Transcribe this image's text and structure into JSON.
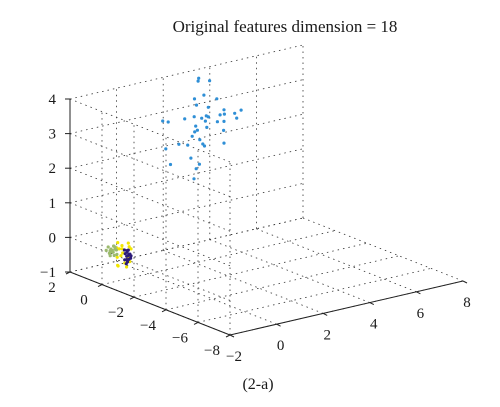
{
  "chart_data": {
    "type": "scatter",
    "projection": "3d",
    "title": "Original features dimension = 18",
    "caption": "(2-a)",
    "xlabel": "",
    "ylabel": "",
    "zlabel": "",
    "grid": true,
    "xlim": [
      -2,
      8
    ],
    "ylim": [
      -8,
      2
    ],
    "zlim": [
      -1,
      4
    ],
    "x_ticks": [
      "−2",
      "0",
      "2",
      "4",
      "6",
      "8"
    ],
    "y_ticks": [
      "2",
      "0",
      "−2",
      "−4",
      "−6",
      "−8"
    ],
    "z_ticks": [
      "−1",
      "0",
      "1",
      "2",
      "3",
      "4"
    ],
    "colors": {
      "yellow": "#f2e600",
      "green": "#9cba6e",
      "navy": "#2c1b78",
      "blue": "#2f8fd6"
    },
    "series": [
      {
        "color": "yellow",
        "points": [
          [
            -0.9,
            0.35,
            -0.2
          ],
          [
            -0.8,
            0.5,
            -0.15
          ],
          [
            -0.85,
            0.25,
            -0.6
          ],
          [
            -1.0,
            0.45,
            -0.7
          ],
          [
            -0.7,
            0.6,
            -0.4
          ],
          [
            -0.75,
            0.15,
            -0.45
          ],
          [
            -0.95,
            0.55,
            -0.05
          ],
          [
            -0.65,
            0.4,
            -0.55
          ],
          [
            -0.85,
            0.7,
            -0.75
          ],
          [
            -0.55,
            0.3,
            -0.25
          ],
          [
            -1.05,
            0.2,
            -0.35
          ],
          [
            -0.8,
            0.05,
            -0.1
          ],
          [
            -0.6,
            0.5,
            -0.8
          ],
          [
            -0.9,
            0.65,
            -0.5
          ],
          [
            -0.7,
            0.25,
            -0.05
          ],
          [
            -0.5,
            0.45,
            -0.65
          ],
          [
            -1.1,
            0.4,
            -0.15
          ],
          [
            -0.75,
            0.75,
            -0.3
          ]
        ]
      },
      {
        "color": "green",
        "points": [
          [
            -1.1,
            0.75,
            -0.25
          ],
          [
            -1.0,
            0.85,
            -0.35
          ],
          [
            -1.15,
            0.6,
            -0.3
          ],
          [
            -0.95,
            0.8,
            -0.2
          ],
          [
            -1.05,
            0.9,
            -0.4
          ],
          [
            -1.2,
            0.7,
            -0.35
          ],
          [
            -0.9,
            0.7,
            -0.3
          ],
          [
            -1.0,
            0.65,
            -0.25
          ],
          [
            -1.1,
            0.8,
            -0.45
          ],
          [
            -1.15,
            0.85,
            -0.2
          ],
          [
            -0.95,
            0.6,
            -0.4
          ],
          [
            -1.05,
            0.75,
            -0.3
          ],
          [
            -1.2,
            0.9,
            -0.3
          ],
          [
            -0.85,
            0.85,
            -0.25
          ],
          [
            -1.0,
            0.95,
            -0.35
          ],
          [
            -1.1,
            0.55,
            -0.4
          ],
          [
            -0.9,
            0.9,
            -0.4
          ],
          [
            -1.05,
            0.65,
            -0.15
          ]
        ]
      },
      {
        "color": "navy",
        "points": [
          [
            -0.8,
            0.3,
            -0.35
          ],
          [
            -0.75,
            0.25,
            -0.3
          ],
          [
            -0.7,
            0.35,
            -0.45
          ],
          [
            -0.8,
            0.2,
            -0.5
          ],
          [
            -0.65,
            0.3,
            -0.4
          ],
          [
            -0.75,
            0.4,
            -0.55
          ],
          [
            -0.7,
            0.15,
            -0.35
          ],
          [
            -0.6,
            0.25,
            -0.5
          ],
          [
            -0.8,
            0.35,
            -0.25
          ],
          [
            -0.7,
            0.3,
            -0.6
          ],
          [
            -0.75,
            0.2,
            -0.4
          ],
          [
            -0.65,
            0.4,
            -0.3
          ],
          [
            -0.55,
            0.3,
            -0.45
          ],
          [
            -0.7,
            0.25,
            -0.25
          ],
          [
            -0.75,
            0.3,
            -0.65
          ],
          [
            -0.6,
            0.35,
            -0.55
          ]
        ]
      },
      {
        "color": "blue",
        "points": [
          [
            3.45,
            1.29,
            3.04
          ],
          [
            3.16,
            1.75,
            2.73
          ],
          [
            4.1,
            2.23,
            2.49
          ],
          [
            3.77,
            0.11,
            3.03
          ],
          [
            3.52,
            2.03,
            3.65
          ],
          [
            3.2,
            1.79,
            3.23
          ],
          [
            3.3,
            1.31,
            1.94
          ],
          [
            1.75,
            1.18,
            1.67
          ],
          [
            3.02,
            1.08,
            2.83
          ],
          [
            3.74,
            0.98,
            2.83
          ],
          [
            3.44,
            0.71,
            2.73
          ],
          [
            3.76,
            -0.03,
            2.92
          ],
          [
            3.55,
            2.29,
            2.13
          ],
          [
            3.4,
            1.82,
            3.79
          ],
          [
            3.25,
            1.53,
            2.09
          ],
          [
            2.36,
            0.99,
            2.17
          ],
          [
            2.27,
            2.23,
            1.85
          ],
          [
            4.26,
            2.75,
            3.0
          ],
          [
            2.41,
            2.63,
            2.56
          ],
          [
            2.46,
            0.94,
            1.79
          ],
          [
            3.3,
            1.81,
            3.03
          ],
          [
            2.43,
            0.7,
            1.24
          ],
          [
            3.31,
            0.11,
            2.24
          ],
          [
            4.21,
            2.32,
            3.5
          ],
          [
            2.44,
            1.66,
            2.06
          ],
          [
            4.2,
            2.51,
            2.45
          ],
          [
            2.67,
            0.84,
            2.58
          ],
          [
            3.02,
            1.67,
            2.2
          ],
          [
            3.21,
            1.04,
            2.54
          ],
          [
            2.44,
            0.58,
            1.55
          ],
          [
            3.46,
            0.3,
            3.02
          ],
          [
            3.9,
            -0.1,
            3.14
          ],
          [
            3.75,
            1.91,
            2.48
          ],
          [
            3.44,
            0.32,
            2.55
          ],
          [
            3.44,
            1.62,
            1.92
          ],
          [
            3.56,
            0.47,
            3.1
          ],
          [
            2.71,
            2.72,
            2.47
          ],
          [
            4.21,
            1.87,
            3.06
          ],
          [
            2.75,
            1.75,
            2.73
          ],
          [
            2.6,
            0.61,
            1.65
          ],
          [
            3.66,
            0.62,
            2.72
          ],
          [
            3.19,
            1.7,
            2.46
          ]
        ]
      }
    ]
  }
}
